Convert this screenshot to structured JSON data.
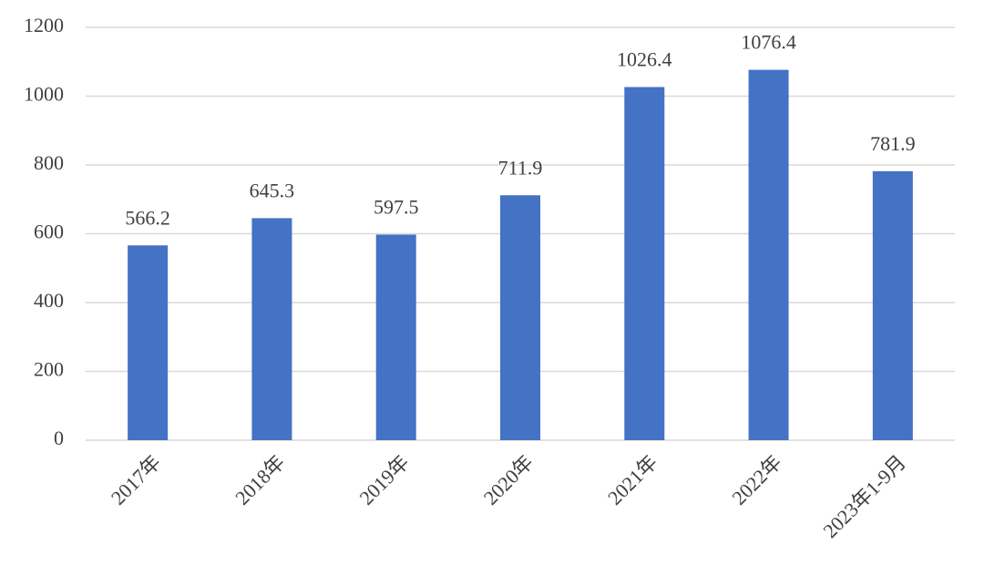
{
  "chart_data": {
    "type": "bar",
    "categories": [
      "2017年",
      "2018年",
      "2019年",
      "2020年",
      "2021年",
      "2022年",
      "2023年1-9月"
    ],
    "values": [
      566.2,
      645.3,
      597.5,
      711.9,
      1026.4,
      1076.4,
      781.9
    ],
    "color": "#4472c4",
    "ylim": [
      0,
      1200
    ],
    "yticks": [
      0,
      200,
      400,
      600,
      800,
      1000,
      1200
    ],
    "grid": true
  }
}
